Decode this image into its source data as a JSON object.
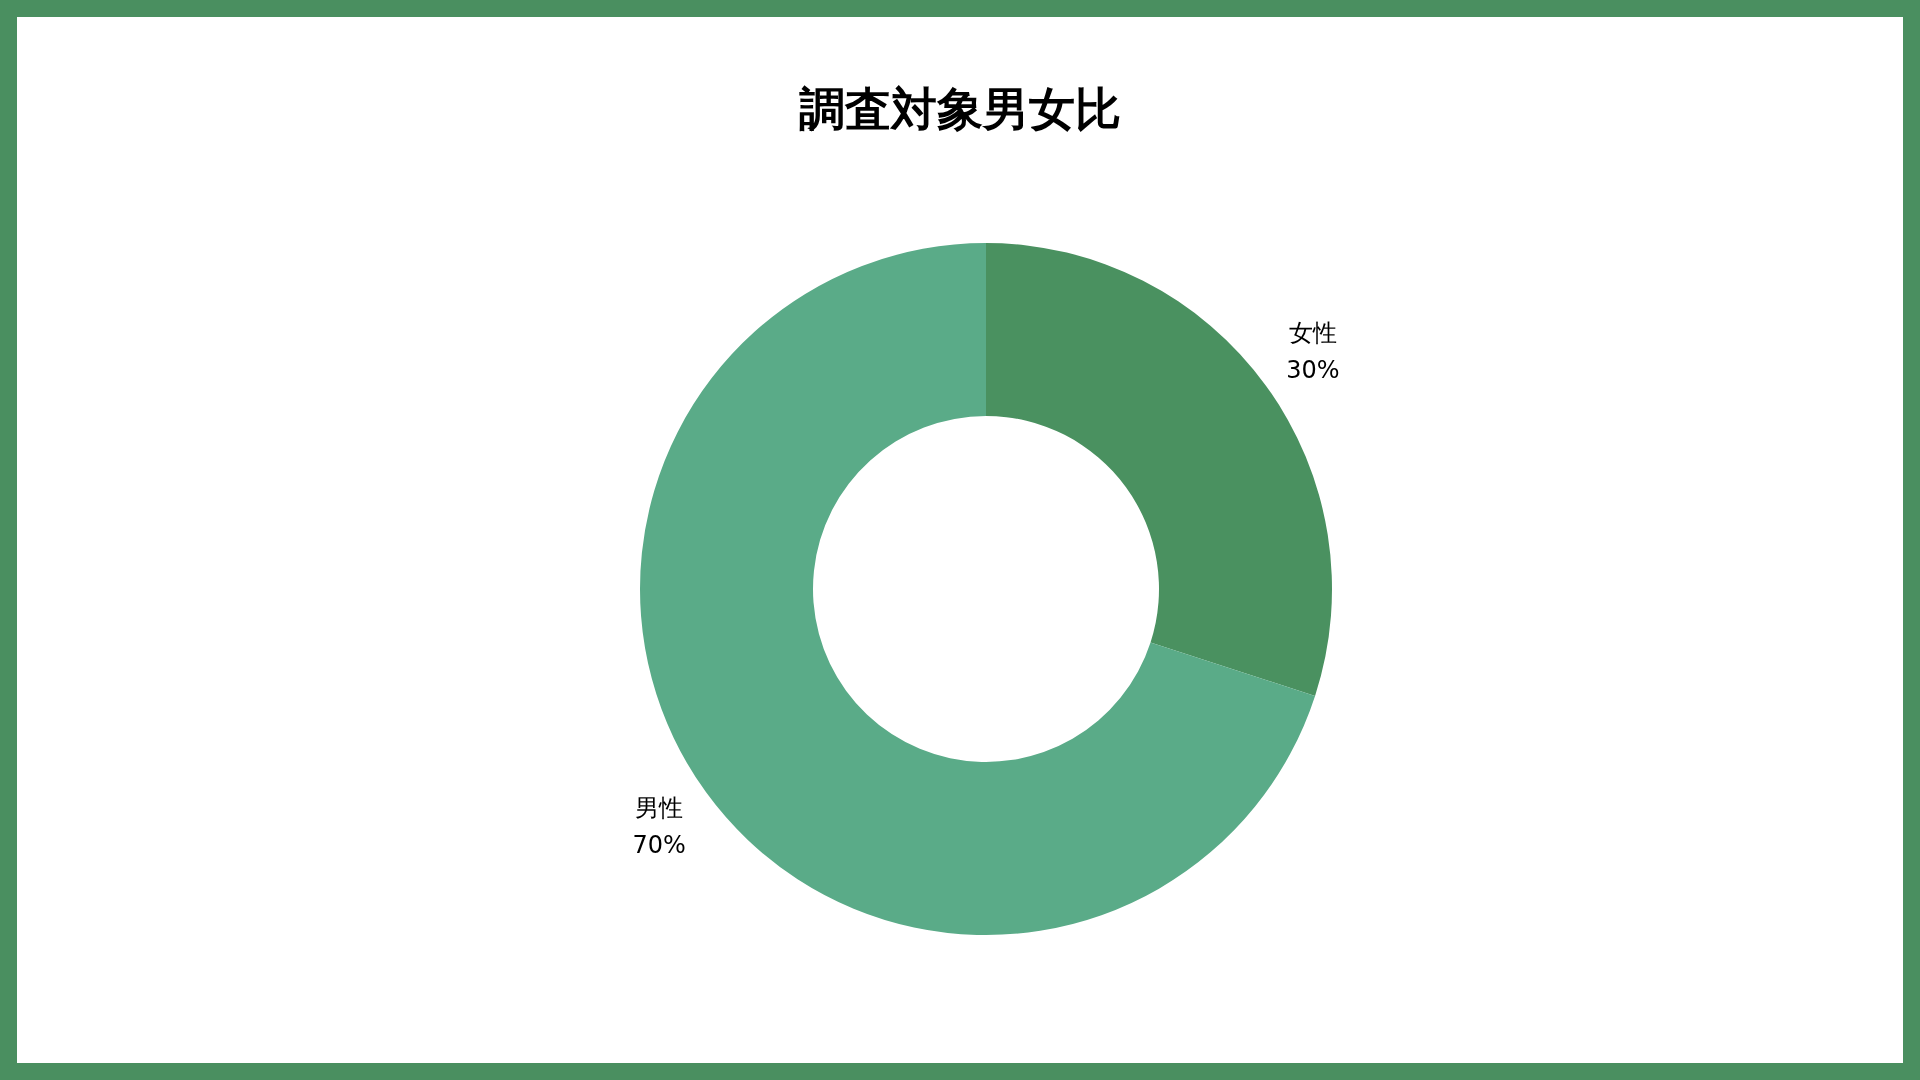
{
  "chart_data": {
    "type": "donut",
    "title": "調査対象男女比",
    "categories": [
      "女性",
      "男性"
    ],
    "values": [
      30,
      70
    ],
    "colors": [
      "#4a9160",
      "#5aab88"
    ],
    "value_labels": [
      "30%",
      "70%"
    ],
    "legend": false
  }
}
